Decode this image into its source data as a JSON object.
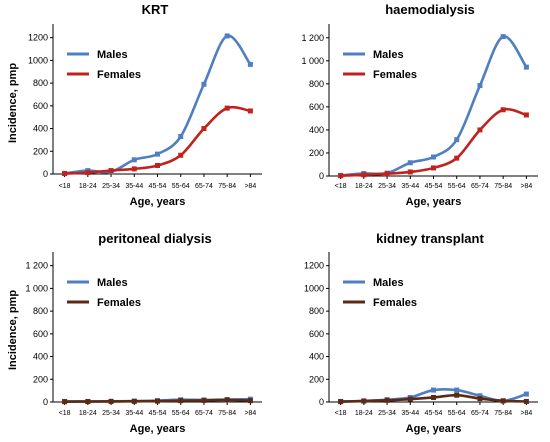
{
  "chart_data": [
    {
      "type": "line",
      "title": "KRT",
      "xlabel": "Age, years",
      "ylabel": "Incidence, pmp",
      "categories": [
        "<18",
        "18-24",
        "25-34",
        "35-44",
        "45-54",
        "55-64",
        "65-74",
        "75-84",
        ">84"
      ],
      "yticks": [
        "0",
        "200",
        "400",
        "600",
        "800",
        "1000",
        "1200"
      ],
      "ylim": [
        0,
        1250
      ],
      "series": [
        {
          "name": "Males",
          "color": "#4f7fc0",
          "values": [
            5,
            30,
            20,
            125,
            175,
            330,
            790,
            1215,
            965
          ]
        },
        {
          "name": "Females",
          "color": "#c0231e",
          "values": [
            4,
            12,
            30,
            45,
            75,
            165,
            400,
            580,
            555
          ]
        }
      ],
      "legend": "top-left"
    },
    {
      "type": "line",
      "title": "haemodialysis",
      "xlabel": "Age, years",
      "ylabel": "",
      "categories": [
        "<18",
        "18-24",
        "25-34",
        "35-44",
        "45-54",
        "55-64",
        "65-74",
        "75-84",
        ">84"
      ],
      "yticks": [
        "0",
        "200",
        "400",
        "600",
        "800",
        "1 000",
        "1 200"
      ],
      "ylim": [
        0,
        1250
      ],
      "series": [
        {
          "name": "Males",
          "color": "#4f7fc0",
          "values": [
            4,
            22,
            25,
            115,
            165,
            315,
            785,
            1210,
            945
          ]
        },
        {
          "name": "Females",
          "color": "#c0231e",
          "values": [
            3,
            10,
            20,
            35,
            70,
            155,
            400,
            575,
            530
          ]
        }
      ],
      "legend": "top-left"
    },
    {
      "type": "line",
      "title": "peritoneal dialysis",
      "xlabel": "Age, years",
      "ylabel": "Incidence, pmp",
      "categories": [
        "<18",
        "18-24",
        "25-34",
        "35-44",
        "45-54",
        "55-64",
        "65-74",
        "75-84",
        ">84"
      ],
      "yticks": [
        "0",
        "200",
        "400",
        "600",
        "800",
        "1 000",
        "1 200"
      ],
      "ylim": [
        0,
        1250
      ],
      "series": [
        {
          "name": "Males",
          "color": "#4f7fc0",
          "values": [
            5,
            5,
            6,
            8,
            12,
            20,
            18,
            22,
            25
          ]
        },
        {
          "name": "Females",
          "color": "#5a2a14",
          "values": [
            3,
            4,
            5,
            6,
            8,
            12,
            14,
            18,
            12
          ]
        }
      ],
      "legend": "top-left"
    },
    {
      "type": "line",
      "title": "kidney transplant",
      "xlabel": "Age, years",
      "ylabel": "",
      "categories": [
        "<18",
        "18-24",
        "25-34",
        "35-44",
        "45-54",
        "55-64",
        "65-74",
        "75-84",
        ">84"
      ],
      "yticks": [
        "0",
        "200",
        "400",
        "600",
        "800",
        "1000",
        "1200"
      ],
      "ylim": [
        0,
        1250
      ],
      "series": [
        {
          "name": "Males",
          "color": "#4f7fc0",
          "values": [
            5,
            10,
            20,
            40,
            105,
            105,
            55,
            10,
            70
          ]
        },
        {
          "name": "Females",
          "color": "#5a2a14",
          "values": [
            3,
            8,
            15,
            25,
            40,
            60,
            30,
            10,
            5
          ]
        }
      ],
      "legend": "top-left"
    }
  ]
}
